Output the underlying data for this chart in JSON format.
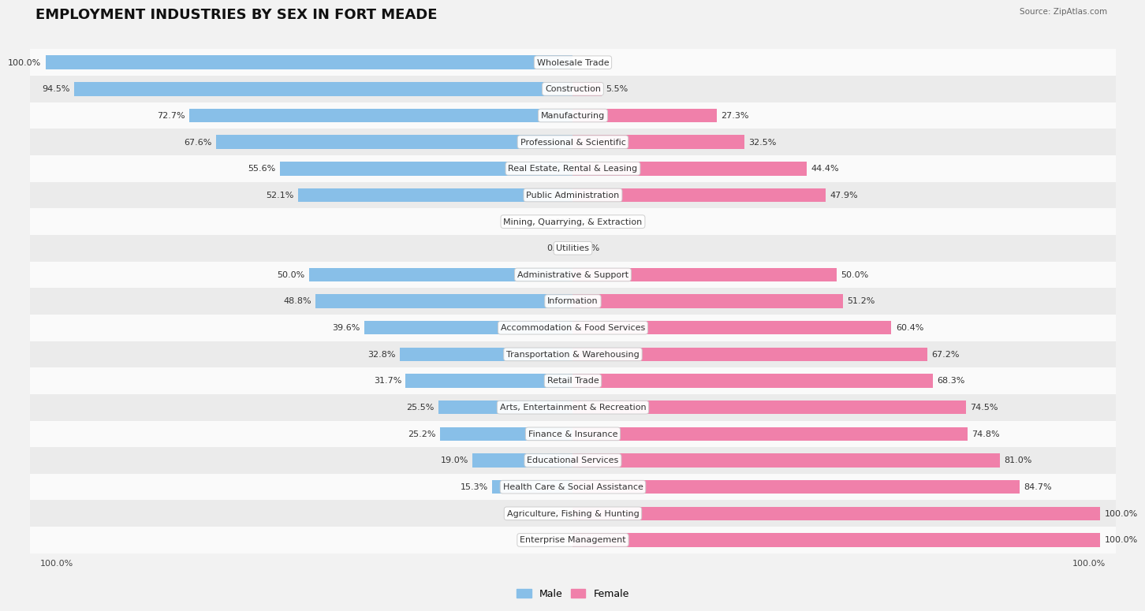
{
  "title": "EMPLOYMENT INDUSTRIES BY SEX IN FORT MEADE",
  "source": "Source: ZipAtlas.com",
  "categories": [
    "Wholesale Trade",
    "Construction",
    "Manufacturing",
    "Professional & Scientific",
    "Real Estate, Rental & Leasing",
    "Public Administration",
    "Mining, Quarrying, & Extraction",
    "Utilities",
    "Administrative & Support",
    "Information",
    "Accommodation & Food Services",
    "Transportation & Warehousing",
    "Retail Trade",
    "Arts, Entertainment & Recreation",
    "Finance & Insurance",
    "Educational Services",
    "Health Care & Social Assistance",
    "Agriculture, Fishing & Hunting",
    "Enterprise Management"
  ],
  "male_pct": [
    100.0,
    94.5,
    72.7,
    67.6,
    55.6,
    52.1,
    0.0,
    0.0,
    50.0,
    48.8,
    39.6,
    32.8,
    31.7,
    25.5,
    25.2,
    19.0,
    15.3,
    0.0,
    0.0
  ],
  "female_pct": [
    0.0,
    5.5,
    27.3,
    32.5,
    44.4,
    47.9,
    0.0,
    0.0,
    50.0,
    51.2,
    60.4,
    67.2,
    68.3,
    74.5,
    74.8,
    81.0,
    84.7,
    100.0,
    100.0
  ],
  "male_color": "#88bfe8",
  "female_color": "#f080aa",
  "bg_color": "#f2f2f2",
  "row_color_light": "#fafafa",
  "row_color_dark": "#ebebeb",
  "bar_height": 0.52,
  "title_fontsize": 13,
  "label_fontsize": 8.0,
  "cat_fontsize": 8.0,
  "legend_fontsize": 9,
  "axis_limit": 103
}
